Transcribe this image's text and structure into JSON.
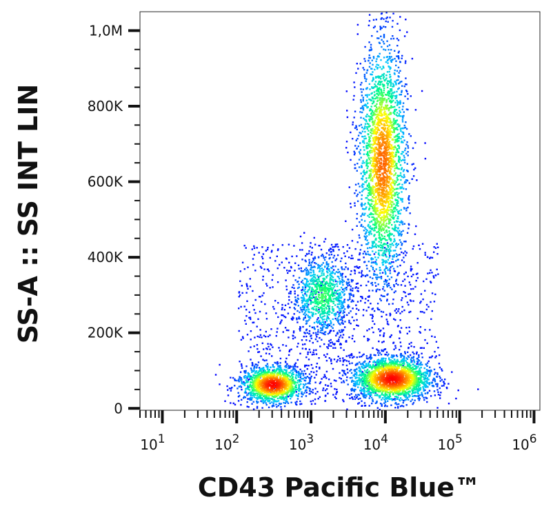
{
  "chart_data": {
    "type": "scatter",
    "subtype": "flow-cytometry density dot plot",
    "xlabel": "CD43 Pacific Blue™",
    "ylabel": "SS-A :: SS INT LIN",
    "x_scale": "log",
    "xlim": [
      5,
      1200000
    ],
    "x_ticks": [
      {
        "value": 10,
        "base": "10",
        "exp": "1"
      },
      {
        "value": 100,
        "base": "10",
        "exp": "2"
      },
      {
        "value": 1000,
        "base": "10",
        "exp": "3"
      },
      {
        "value": 10000,
        "base": "10",
        "exp": "4"
      },
      {
        "value": 100000,
        "base": "10",
        "exp": "5"
      },
      {
        "value": 1000000,
        "base": "10",
        "exp": "6"
      }
    ],
    "y_scale": "linear",
    "ylim": [
      -5000,
      1050000
    ],
    "y_ticks": [
      {
        "value": 0,
        "label": "0"
      },
      {
        "value": 200000,
        "label": "200K"
      },
      {
        "value": 400000,
        "label": "400K"
      },
      {
        "value": 600000,
        "label": "600K"
      },
      {
        "value": 800000,
        "label": "800K"
      },
      {
        "value": 1000000,
        "label": "1,0M"
      }
    ],
    "grid": false,
    "colormap": [
      "#0000ff",
      "#00c8ff",
      "#00ff80",
      "#ffff00",
      "#ff8000",
      "#ff0000"
    ],
    "populations": [
      {
        "x_center": 300,
        "y_center": 65000,
        "x_spread_decades": 0.22,
        "y_spread": 25000,
        "count": 1400,
        "peak": "red"
      },
      {
        "x_center": 1400,
        "y_center": 300000,
        "x_spread_decades": 0.2,
        "y_spread": 55000,
        "count": 900,
        "peak": "cyan"
      },
      {
        "x_center": 9000,
        "y_center": 650000,
        "x_spread_decades": 0.16,
        "y_spread": 160000,
        "count": 2600,
        "peak": "orange"
      },
      {
        "x_center": 12000,
        "y_center": 80000,
        "x_spread_decades": 0.27,
        "y_spread": 30000,
        "count": 2000,
        "peak": "red"
      }
    ]
  }
}
